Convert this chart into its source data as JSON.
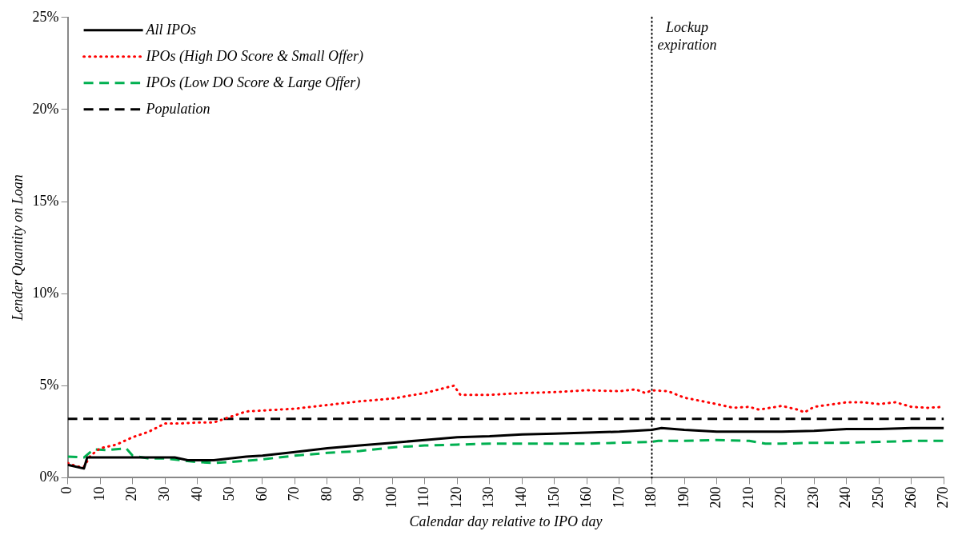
{
  "chart_data": {
    "type": "line",
    "xlabel": "Calendar day relative to IPO day",
    "ylabel": "Lender Quantity on Loan",
    "xlim": [
      0,
      270
    ],
    "xticks": [
      0,
      10,
      20,
      30,
      40,
      50,
      60,
      70,
      80,
      90,
      100,
      110,
      120,
      130,
      140,
      150,
      160,
      170,
      180,
      190,
      200,
      210,
      220,
      230,
      240,
      250,
      260,
      270
    ],
    "ylim": [
      0,
      25
    ],
    "yticks": [
      {
        "value": 0,
        "label": "0%"
      },
      {
        "value": 5,
        "label": "5%"
      },
      {
        "value": 10,
        "label": "10%"
      },
      {
        "value": 15,
        "label": "15%"
      },
      {
        "value": 20,
        "label": "20%"
      },
      {
        "value": 25,
        "label": "25%"
      }
    ],
    "grid": false,
    "legend": "top left",
    "marker": "none",
    "ref_lines": [
      {
        "axis": "x",
        "value": 180,
        "label": "Lockup expiration",
        "color": "#000000",
        "line_style": "dotted"
      }
    ],
    "series": [
      {
        "name": "All IPOs",
        "color": "#000000",
        "line_style": "solid",
        "x": [
          0,
          5,
          6,
          10,
          20,
          30,
          33,
          37,
          40,
          45,
          50,
          55,
          60,
          70,
          80,
          90,
          100,
          110,
          120,
          130,
          140,
          150,
          160,
          170,
          180,
          183,
          190,
          200,
          210,
          220,
          230,
          240,
          250,
          260,
          270
        ],
        "values": [
          0.7,
          0.5,
          1.1,
          1.1,
          1.1,
          1.1,
          1.1,
          0.95,
          0.95,
          0.95,
          1.05,
          1.15,
          1.2,
          1.4,
          1.6,
          1.75,
          1.9,
          2.05,
          2.2,
          2.25,
          2.35,
          2.4,
          2.45,
          2.5,
          2.6,
          2.7,
          2.6,
          2.5,
          2.5,
          2.5,
          2.55,
          2.65,
          2.65,
          2.7,
          2.7
        ]
      },
      {
        "name": "IPOs (High DO Score & Small Offer)",
        "color": "#ff0000",
        "line_style": "dotted",
        "x": [
          0,
          3,
          5,
          7,
          10,
          15,
          20,
          25,
          30,
          35,
          40,
          45,
          50,
          55,
          60,
          70,
          80,
          90,
          100,
          110,
          119,
          121,
          130,
          140,
          150,
          160,
          170,
          175,
          178,
          180,
          185,
          190,
          200,
          205,
          210,
          213,
          220,
          225,
          227,
          230,
          240,
          245,
          250,
          255,
          260,
          265,
          270
        ],
        "values": [
          0.8,
          0.6,
          0.6,
          1.2,
          1.6,
          1.8,
          2.2,
          2.5,
          2.95,
          2.95,
          3.0,
          3.0,
          3.3,
          3.6,
          3.65,
          3.75,
          3.95,
          4.15,
          4.3,
          4.6,
          5.0,
          4.5,
          4.5,
          4.6,
          4.65,
          4.75,
          4.7,
          4.8,
          4.6,
          4.75,
          4.7,
          4.35,
          4.0,
          3.8,
          3.85,
          3.7,
          3.9,
          3.7,
          3.55,
          3.85,
          4.1,
          4.1,
          4.0,
          4.1,
          3.85,
          3.8,
          3.85
        ]
      },
      {
        "name": "IPOs (Low DO Score & Large Offer)",
        "color": "#00b050",
        "line_style": "dashed",
        "x": [
          0,
          5,
          8,
          12,
          18,
          20,
          25,
          30,
          40,
          45,
          50,
          60,
          70,
          80,
          90,
          100,
          110,
          120,
          130,
          140,
          150,
          160,
          170,
          180,
          182,
          190,
          200,
          210,
          215,
          220,
          230,
          240,
          250,
          260,
          270
        ],
        "values": [
          1.15,
          1.1,
          1.55,
          1.5,
          1.6,
          1.2,
          1.05,
          1.05,
          0.85,
          0.8,
          0.85,
          1.0,
          1.2,
          1.35,
          1.45,
          1.65,
          1.75,
          1.8,
          1.85,
          1.85,
          1.85,
          1.85,
          1.9,
          1.95,
          2.0,
          2.0,
          2.05,
          2.0,
          1.85,
          1.85,
          1.9,
          1.9,
          1.95,
          2.0,
          2.0
        ]
      },
      {
        "name": "Population",
        "color": "#000000",
        "line_style": "dashed",
        "x": [
          0,
          270
        ],
        "values": [
          3.2,
          3.2
        ]
      }
    ]
  }
}
